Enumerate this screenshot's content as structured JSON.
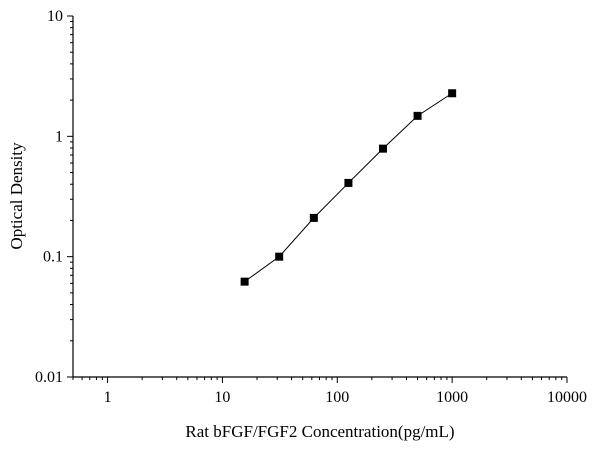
{
  "chart_data": {
    "type": "line",
    "xlabel": "Rat bFGF/FGF2 Concentration(pg/mL)",
    "ylabel": "Optical Density",
    "xscale": "log",
    "yscale": "log",
    "xlim": [
      0.5,
      10000
    ],
    "ylim": [
      0.01,
      10
    ],
    "xticks": [
      {
        "value": 1,
        "label": "1"
      },
      {
        "value": 10,
        "label": "10"
      },
      {
        "value": 100,
        "label": "100"
      },
      {
        "value": 1000,
        "label": "1000"
      },
      {
        "value": 10000,
        "label": "10000"
      }
    ],
    "yticks": [
      {
        "value": 0.01,
        "label": "0.01"
      },
      {
        "value": 0.1,
        "label": "0.1"
      },
      {
        "value": 1,
        "label": "1"
      },
      {
        "value": 10,
        "label": "10"
      }
    ],
    "grid": false,
    "marker": "square",
    "color": "#000000",
    "series": [
      {
        "x": [
          15.6,
          31.2,
          62.5,
          125,
          250,
          500,
          1000
        ],
        "y": [
          0.062,
          0.1,
          0.21,
          0.41,
          0.79,
          1.48,
          2.28
        ]
      }
    ]
  }
}
